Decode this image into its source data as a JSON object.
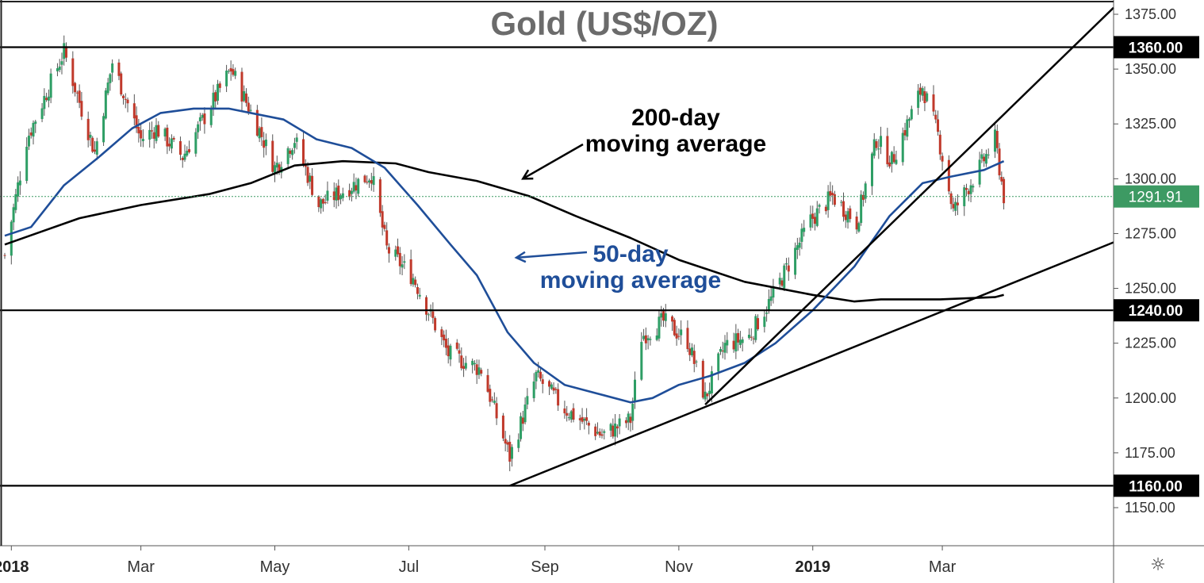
{
  "chart_data": {
    "type": "candlestick",
    "title": "Gold (US$/OZ)",
    "x_ticks": [
      {
        "label": "2018",
        "date": "2018-01-01",
        "bold": true
      },
      {
        "label": "Mar",
        "date": "2018-03-01",
        "bold": false
      },
      {
        "label": "May",
        "date": "2018-05-01",
        "bold": false
      },
      {
        "label": "Jul",
        "date": "2018-07-01",
        "bold": false
      },
      {
        "label": "Sep",
        "date": "2018-09-01",
        "bold": false
      },
      {
        "label": "Nov",
        "date": "2018-11-01",
        "bold": false
      },
      {
        "label": "2019",
        "date": "2019-01-01",
        "bold": true
      },
      {
        "label": "Mar",
        "date": "2019-03-01",
        "bold": false
      }
    ],
    "y_ticks": [
      "1375.00",
      "1350.00",
      "1325.00",
      "1300.00",
      "1275.00",
      "1250.00",
      "1225.00",
      "1200.00",
      "1175.00",
      "1150.00"
    ],
    "ylim": [
      1125,
      1384
    ],
    "xlim": [
      "2017-12-29",
      "2019-05-18"
    ],
    "price_path": [
      [
        "2017-12-29",
        1265
      ],
      [
        "2018-01-08",
        1318
      ],
      [
        "2018-01-25",
        1358
      ],
      [
        "2018-02-08",
        1312
      ],
      [
        "2018-02-16",
        1353
      ],
      [
        "2018-03-01",
        1318
      ],
      [
        "2018-03-08",
        1323
      ],
      [
        "2018-03-20",
        1310
      ],
      [
        "2018-04-11",
        1350
      ],
      [
        "2018-04-24",
        1322
      ],
      [
        "2018-05-01",
        1305
      ],
      [
        "2018-05-10",
        1318
      ],
      [
        "2018-05-21",
        1288
      ],
      [
        "2018-06-14",
        1302
      ],
      [
        "2018-06-21",
        1268
      ],
      [
        "2018-07-03",
        1255
      ],
      [
        "2018-07-19",
        1220
      ],
      [
        "2018-08-03",
        1213
      ],
      [
        "2018-08-16",
        1173
      ],
      [
        "2018-08-28",
        1210
      ],
      [
        "2018-09-10",
        1195
      ],
      [
        "2018-09-27",
        1183
      ],
      [
        "2018-10-10",
        1190
      ],
      [
        "2018-10-15",
        1228
      ],
      [
        "2018-10-25",
        1235
      ],
      [
        "2018-11-05",
        1226
      ],
      [
        "2018-11-13",
        1200
      ],
      [
        "2018-11-22",
        1224
      ],
      [
        "2018-12-03",
        1228
      ],
      [
        "2018-12-13",
        1245
      ],
      [
        "2018-12-31",
        1281
      ],
      [
        "2019-01-10",
        1292
      ],
      [
        "2019-01-21",
        1280
      ],
      [
        "2019-01-30",
        1318
      ],
      [
        "2019-02-06",
        1308
      ],
      [
        "2019-02-20",
        1342
      ],
      [
        "2019-02-27",
        1320
      ],
      [
        "2019-03-06",
        1285
      ],
      [
        "2019-03-18",
        1305
      ],
      [
        "2019-03-25",
        1318
      ],
      [
        "2019-03-29",
        1292
      ]
    ],
    "series": [
      {
        "name": "200-day moving average",
        "color": "#000000",
        "points": [
          [
            "2017-12-29",
            1270
          ],
          [
            "2018-01-15",
            1276
          ],
          [
            "2018-02-01",
            1282
          ],
          [
            "2018-03-01",
            1288
          ],
          [
            "2018-04-01",
            1293
          ],
          [
            "2018-04-20",
            1298
          ],
          [
            "2018-05-10",
            1306
          ],
          [
            "2018-06-01",
            1308
          ],
          [
            "2018-06-25",
            1307
          ],
          [
            "2018-07-10",
            1303
          ],
          [
            "2018-08-01",
            1299
          ],
          [
            "2018-08-25",
            1292
          ],
          [
            "2018-09-15",
            1283
          ],
          [
            "2018-10-10",
            1273
          ],
          [
            "2018-11-01",
            1263
          ],
          [
            "2018-12-01",
            1253
          ],
          [
            "2019-01-01",
            1247
          ],
          [
            "2019-01-20",
            1244
          ],
          [
            "2019-02-01",
            1245
          ],
          [
            "2019-02-28",
            1245
          ],
          [
            "2019-03-25",
            1246
          ],
          [
            "2019-03-29",
            1247
          ]
        ]
      },
      {
        "name": "50-day moving average",
        "color": "#1f4e99",
        "points": [
          [
            "2017-12-29",
            1274
          ],
          [
            "2018-01-10",
            1278
          ],
          [
            "2018-01-25",
            1297
          ],
          [
            "2018-02-10",
            1310
          ],
          [
            "2018-02-25",
            1323
          ],
          [
            "2018-03-10",
            1330
          ],
          [
            "2018-03-25",
            1332
          ],
          [
            "2018-04-10",
            1332
          ],
          [
            "2018-04-25",
            1329
          ],
          [
            "2018-05-05",
            1327
          ],
          [
            "2018-05-20",
            1318
          ],
          [
            "2018-06-05",
            1314
          ],
          [
            "2018-06-20",
            1305
          ],
          [
            "2018-07-05",
            1288
          ],
          [
            "2018-07-20",
            1270
          ],
          [
            "2018-08-01",
            1256
          ],
          [
            "2018-08-15",
            1230
          ],
          [
            "2018-08-27",
            1216
          ],
          [
            "2018-09-10",
            1206
          ],
          [
            "2018-09-25",
            1202
          ],
          [
            "2018-10-10",
            1198
          ],
          [
            "2018-10-20",
            1200
          ],
          [
            "2018-11-01",
            1206
          ],
          [
            "2018-11-15",
            1210
          ],
          [
            "2018-12-01",
            1216
          ],
          [
            "2018-12-15",
            1225
          ],
          [
            "2019-01-01",
            1240
          ],
          [
            "2019-01-20",
            1260
          ],
          [
            "2019-02-05",
            1283
          ],
          [
            "2019-02-20",
            1298
          ],
          [
            "2019-03-05",
            1301
          ],
          [
            "2019-03-20",
            1304
          ],
          [
            "2019-03-29",
            1308
          ]
        ]
      }
    ],
    "trendlines": [
      {
        "from": [
          "2018-08-16",
          1160
        ],
        "to": [
          "2019-05-18",
          1271
        ],
        "color": "#000000"
      },
      {
        "from": [
          "2018-11-13",
          1197
        ],
        "to": [
          "2019-05-18",
          1378
        ],
        "color": "#000000"
      }
    ],
    "levels": [
      {
        "label": "1360.00",
        "value": 1360
      },
      {
        "label": "1240.00",
        "value": 1240
      },
      {
        "label": "1160.00",
        "value": 1160
      }
    ],
    "last_price": {
      "label": "1291.91",
      "value": 1291.91,
      "color": "#3d9a63"
    },
    "annotations": [
      {
        "lines": [
          "200-day",
          "moving average"
        ],
        "color": "#000000",
        "arrow_to": [
          "2018-08-22",
          1300
        ]
      },
      {
        "lines": [
          "50-day",
          "moving average"
        ],
        "color": "#1f4e99",
        "arrow_to": [
          "2018-08-19",
          1264
        ]
      }
    ],
    "colors": {
      "up": "#2e9e65",
      "down": "#c0392b",
      "grid": "none",
      "background": "#ffffff"
    }
  },
  "ui": {
    "settings_icon": "gear-icon",
    "settings_glyph": "☼"
  }
}
